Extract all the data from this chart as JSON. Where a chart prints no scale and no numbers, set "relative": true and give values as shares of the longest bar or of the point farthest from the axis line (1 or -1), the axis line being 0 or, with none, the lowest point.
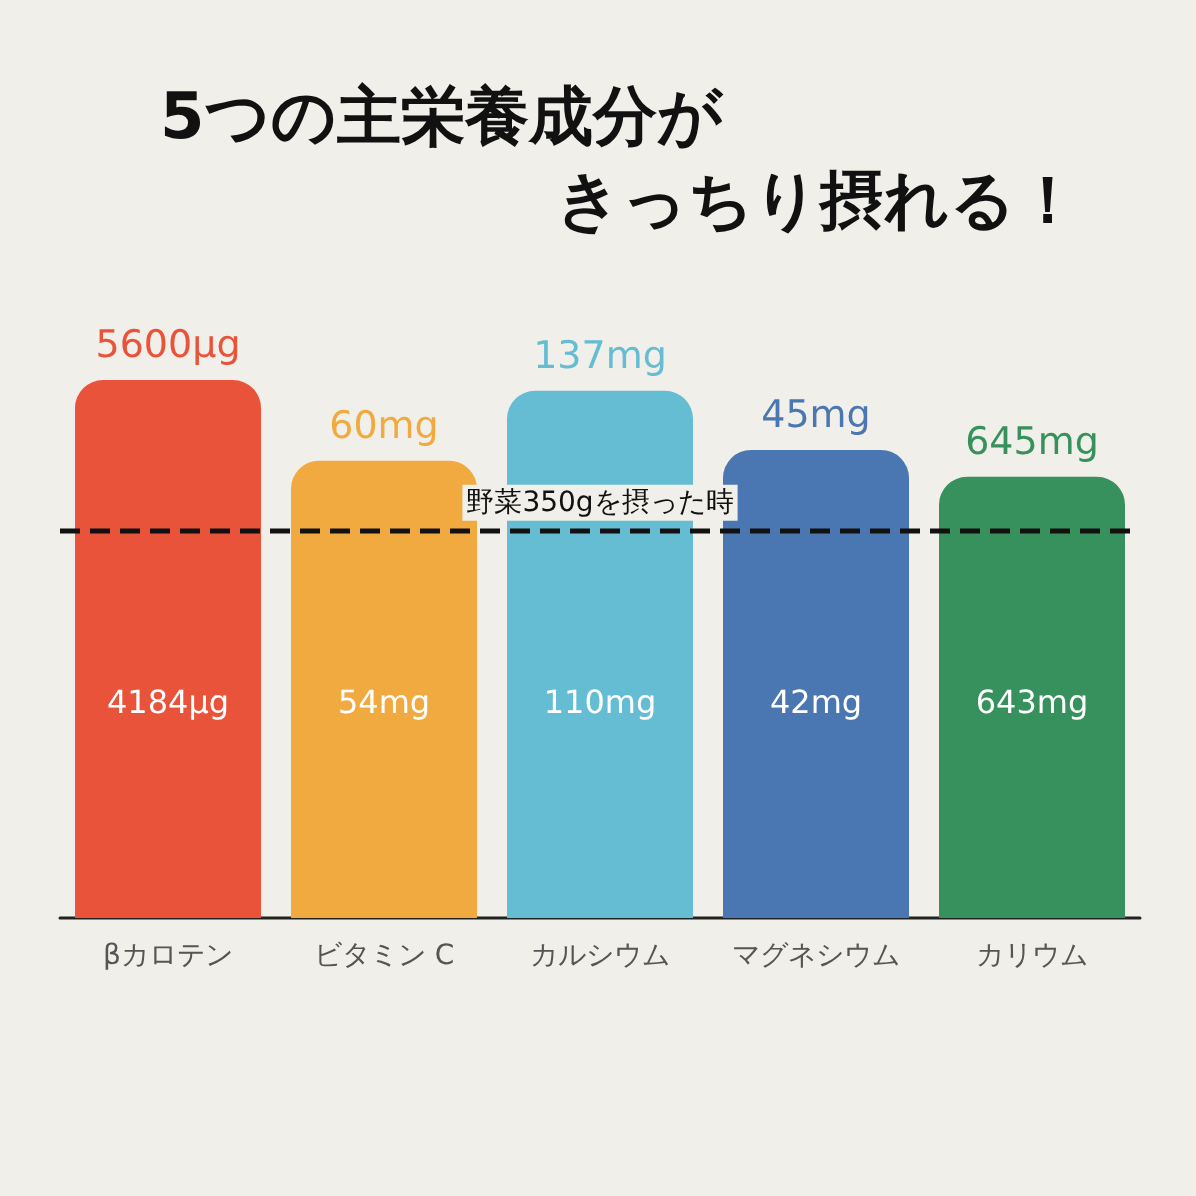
{
  "chart_data": {
    "type": "bar",
    "title": "5つの主栄養成分がきっちり摂れる！",
    "relative": true,
    "categories": [
      "βカロテン",
      "ビタミン C",
      "カルシウム",
      "マグネシウム",
      "カリウム"
    ],
    "values": [
      1,
      0.85,
      0.98,
      0.87,
      0.82
    ],
    "colors": [
      "#e9533a",
      "#f0aa3f",
      "#64bdd3",
      "#4a76b1",
      "#36915c"
    ],
    "annotations": [
      "5600μg",
      "60mg",
      "137mg",
      "45mg",
      "645mg",
      "4184μg",
      "54mg",
      "110mg",
      "42mg",
      "643mg"
    ],
    "ref_lines": [
      {
        "axis": "y",
        "value": 0.72,
        "label": "野菜350gを摂った時",
        "color": "#111111",
        "line_style": "dashed"
      }
    ]
  }
}
